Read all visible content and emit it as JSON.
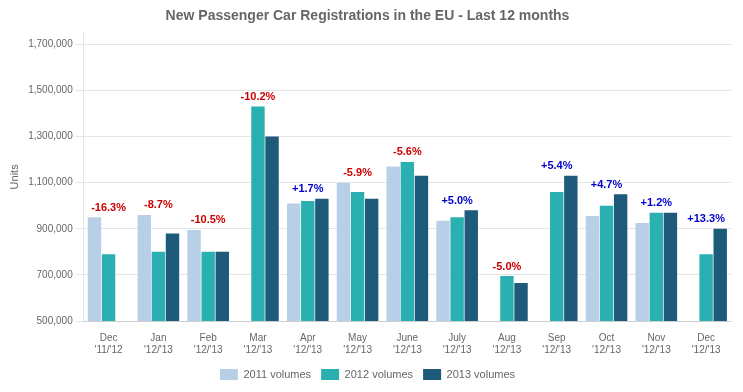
{
  "chart_data": {
    "type": "bar",
    "title": "New Passenger Car Registrations in the EU - Last 12 months",
    "ylabel": "Units",
    "categories": [
      "Dec\n'11/'12",
      "Jan\n'12/'13",
      "Feb\n'12/'13",
      "Mar\n'12/'13",
      "Apr\n'12/'13",
      "May\n'12/'13",
      "June\n'12/'13",
      "July\n'12/'13",
      "Aug\n'12/'13",
      "Sep\n'12/'13",
      "Oct\n'12/'13",
      "Nov\n'12/'13",
      "Dec\n'12/'13"
    ],
    "series": [
      {
        "name": "2011 volumes",
        "color": "#b8cfe8",
        "values": [
          950000,
          960000,
          895000,
          null,
          1010000,
          1100000,
          1170000,
          935000,
          null,
          null,
          955000,
          925000,
          null
        ]
      },
      {
        "name": "2012 volumes",
        "color": "#2ab0b0",
        "values": [
          790000,
          800000,
          800000,
          1430000,
          1020000,
          1060000,
          1190000,
          950000,
          695000,
          1060000,
          1000000,
          970000,
          790000
        ]
      },
      {
        "name": "2013 volumes",
        "color": "#1e5a7a",
        "values": [
          null,
          880000,
          800000,
          1300000,
          1030000,
          1030000,
          1130000,
          980000,
          665000,
          1130000,
          1050000,
          970000,
          900000
        ]
      }
    ],
    "annotations": [
      {
        "text": "-16.3%",
        "color": "#cc0000"
      },
      {
        "text": "-8.7%",
        "color": "#cc0000"
      },
      {
        "text": "-10.5%",
        "color": "#cc0000"
      },
      {
        "text": "-10.2%",
        "color": "#cc0000"
      },
      {
        "text": "+1.7%",
        "color": "#0000cc"
      },
      {
        "text": "-5.9%",
        "color": "#cc0000"
      },
      {
        "text": "-5.6%",
        "color": "#cc0000"
      },
      {
        "text": "+5.0%",
        "color": "#0000cc"
      },
      {
        "text": "-5.0%",
        "color": "#cc0000"
      },
      {
        "text": "+5.4%",
        "color": "#0000cc"
      },
      {
        "text": "+4.7%",
        "color": "#0000cc"
      },
      {
        "text": "+1.2%",
        "color": "#0000cc"
      },
      {
        "text": "+13.3%",
        "color": "#0000cc"
      }
    ],
    "ylim": [
      500000,
      1750000
    ],
    "yticks": [
      {
        "value": 500000,
        "label": "500,000"
      },
      {
        "value": 700000,
        "label": "700,000"
      },
      {
        "value": 900000,
        "label": "900,000"
      },
      {
        "value": 1100000,
        "label": "1,100,000"
      },
      {
        "value": 1300000,
        "label": "1,300,000"
      },
      {
        "value": 1500000,
        "label": "1,500,000"
      },
      {
        "value": 1700000,
        "label": "1,700,000"
      }
    ],
    "grid": true,
    "legend": "bottom"
  }
}
